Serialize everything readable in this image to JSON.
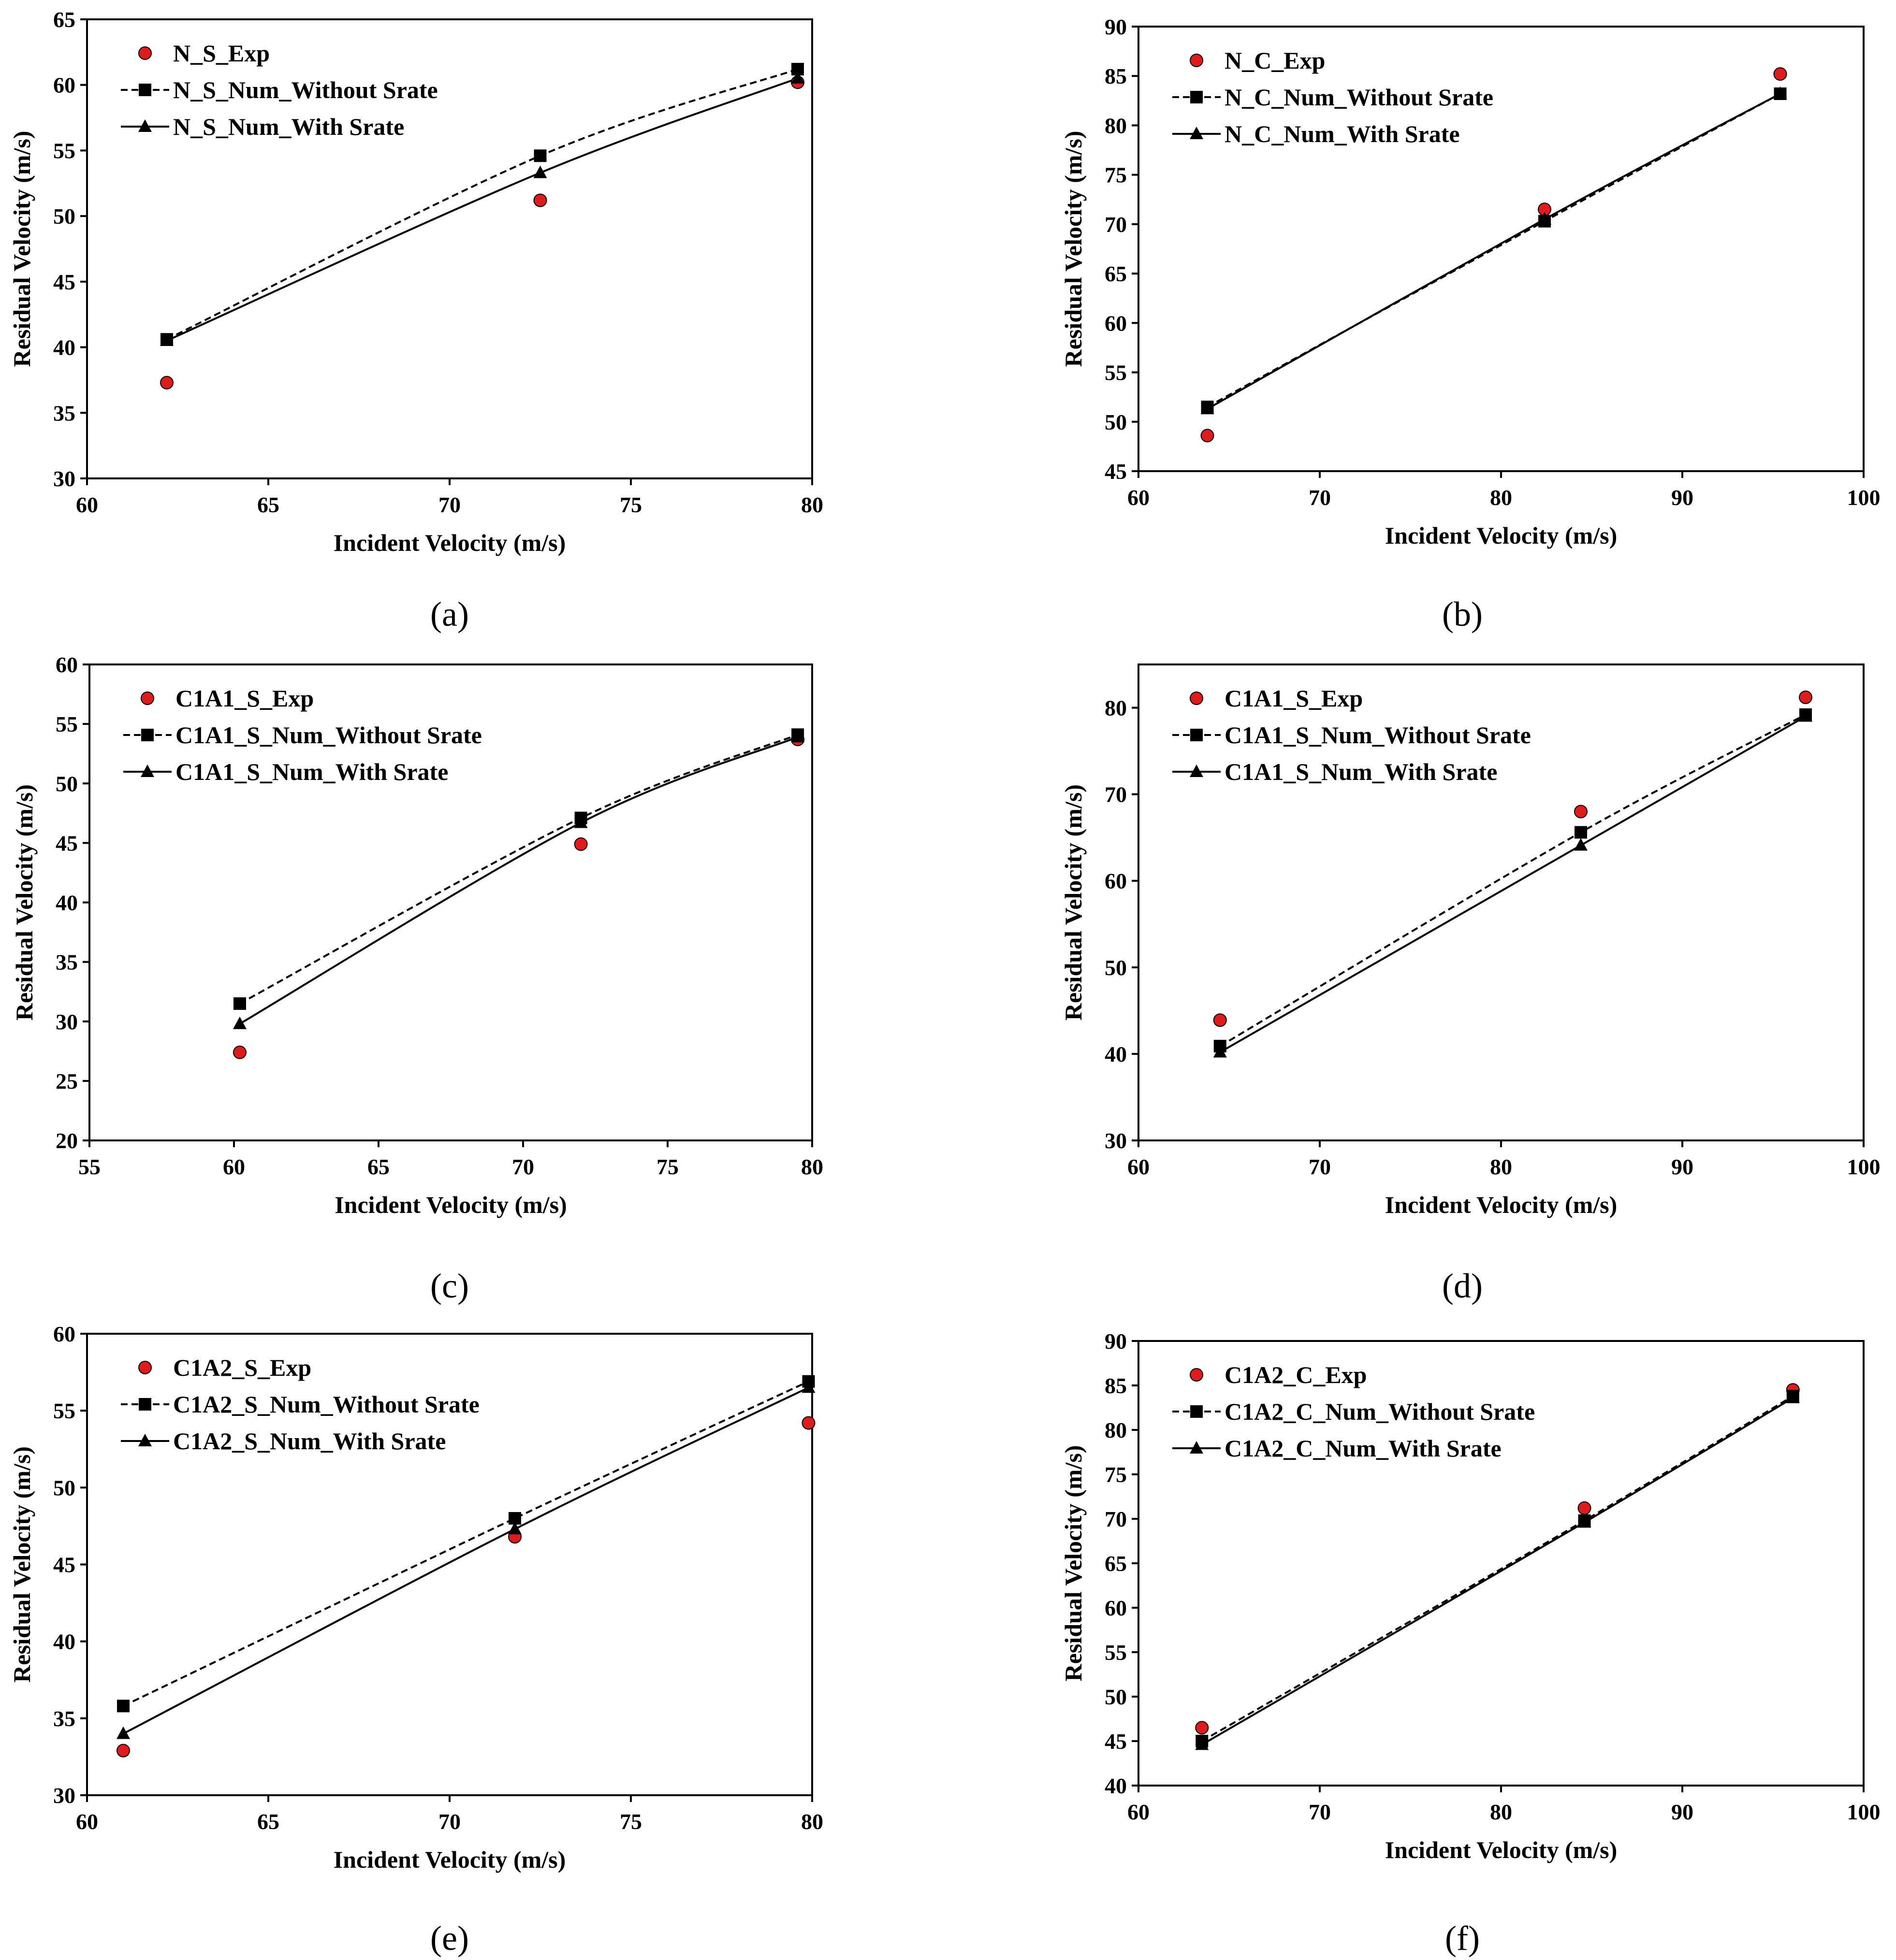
{
  "colors": {
    "exp_marker": "#e01b1b",
    "num_marker": "#000000",
    "axis": "#000000"
  },
  "chart_data": [
    {
      "type": "line",
      "caption": "(a)",
      "xlabel": "Incident Velocity (m/s)",
      "ylabel": "Residual Velocity (m/s)",
      "xlim": [
        60,
        80
      ],
      "ylim": [
        30,
        65
      ],
      "xticks": [
        60,
        65,
        70,
        75,
        80
      ],
      "yticks": [
        30,
        35,
        40,
        45,
        50,
        55,
        60,
        65
      ],
      "series": [
        {
          "name": "N_S_Exp",
          "kind": "exp",
          "x": [
            62.2,
            72.5,
            79.6
          ],
          "y": [
            37.3,
            51.2,
            60.2
          ]
        },
        {
          "name": "N_S_Num_Without Srate",
          "kind": "without",
          "x": [
            62.2,
            72.5,
            79.6
          ],
          "y": [
            40.6,
            54.6,
            61.2
          ]
        },
        {
          "name": "N_S_Num_With Srate",
          "kind": "with",
          "x": [
            62.2,
            72.5,
            79.6
          ],
          "y": [
            40.5,
            53.3,
            60.5
          ]
        }
      ]
    },
    {
      "type": "line",
      "caption": "(b)",
      "xlabel": "Incident Velocity (m/s)",
      "ylabel": "Residual Velocity (m/s)",
      "xlim": [
        60,
        100
      ],
      "ylim": [
        45,
        90
      ],
      "xticks": [
        60,
        70,
        80,
        90,
        100
      ],
      "yticks": [
        45,
        50,
        55,
        60,
        65,
        70,
        75,
        80,
        85,
        90
      ],
      "series": [
        {
          "name": "N_C_Exp",
          "kind": "exp",
          "x": [
            63.8,
            82.4,
            95.4
          ],
          "y": [
            48.6,
            71.5,
            85.2
          ]
        },
        {
          "name": "N_C_Num_Without Srate",
          "kind": "without",
          "x": [
            63.8,
            82.4,
            95.4
          ],
          "y": [
            51.5,
            70.3,
            83.2
          ]
        },
        {
          "name": "N_C_Num_With Srate",
          "kind": "with",
          "x": [
            63.8,
            82.4,
            95.4
          ],
          "y": [
            51.3,
            70.5,
            83.2
          ]
        }
      ]
    },
    {
      "type": "line",
      "caption": "(c)",
      "xlabel": "Incident Velocity (m/s)",
      "ylabel": "Residual Velocity (m/s)",
      "xlim": [
        55,
        80
      ],
      "ylim": [
        20,
        60
      ],
      "xticks": [
        55,
        60,
        65,
        70,
        75,
        80
      ],
      "yticks": [
        20,
        25,
        30,
        35,
        40,
        45,
        50,
        55,
        60
      ],
      "series": [
        {
          "name": "C1A1_S_Exp",
          "kind": "exp",
          "x": [
            60.2,
            72.0,
            79.5
          ],
          "y": [
            27.4,
            44.9,
            53.7
          ]
        },
        {
          "name": "C1A1_S_Num_Without Srate",
          "kind": "without",
          "x": [
            60.2,
            72.0,
            79.5
          ],
          "y": [
            31.5,
            47.1,
            54.1
          ]
        },
        {
          "name": "C1A1_S_Num_With Srate",
          "kind": "with",
          "x": [
            60.2,
            72.0,
            79.5
          ],
          "y": [
            29.8,
            46.7,
            53.9
          ]
        }
      ]
    },
    {
      "type": "line",
      "caption": "(d)",
      "xlabel": "Incident Velocity (m/s)",
      "ylabel": "Residual Velocity (m/s)",
      "xlim": [
        60,
        100
      ],
      "ylim": [
        30,
        85
      ],
      "xticks": [
        60,
        70,
        80,
        90,
        100
      ],
      "yticks": [
        30,
        40,
        50,
        60,
        70,
        80
      ],
      "series": [
        {
          "name": "C1A1_S_Exp",
          "kind": "exp",
          "x": [
            64.5,
            84.4,
            96.8
          ],
          "y": [
            43.9,
            68.0,
            81.2
          ]
        },
        {
          "name": "C1A1_S_Num_Without Srate",
          "kind": "without",
          "x": [
            64.5,
            84.4,
            96.8
          ],
          "y": [
            40.9,
            65.6,
            79.2
          ]
        },
        {
          "name": "C1A1_S_Num_With Srate",
          "kind": "with",
          "x": [
            64.5,
            84.4,
            96.8
          ],
          "y": [
            40.2,
            64.1,
            79.0
          ]
        }
      ]
    },
    {
      "type": "line",
      "caption": "(e)",
      "xlabel": "Incident Velocity (m/s)",
      "ylabel": "Residual Velocity (m/s)",
      "xlim": [
        60,
        80
      ],
      "ylim": [
        30,
        60
      ],
      "xticks": [
        60,
        65,
        70,
        75,
        80
      ],
      "yticks": [
        30,
        35,
        40,
        45,
        50,
        55,
        60
      ],
      "series": [
        {
          "name": "C1A2_S_Exp",
          "kind": "exp",
          "x": [
            61.0,
            71.8,
            79.9
          ],
          "y": [
            32.9,
            46.8,
            54.2
          ]
        },
        {
          "name": "C1A2_S_Num_Without Srate",
          "kind": "without",
          "x": [
            61.0,
            71.8,
            79.9
          ],
          "y": [
            35.8,
            48.0,
            56.9
          ]
        },
        {
          "name": "C1A2_S_Num_With Srate",
          "kind": "with",
          "x": [
            61.0,
            71.8,
            79.9
          ],
          "y": [
            34.0,
            47.3,
            56.5
          ]
        }
      ]
    },
    {
      "type": "line",
      "caption": "(f)",
      "xlabel": "Incident Velocity (m/s)",
      "ylabel": "Residual Velocity (m/s)",
      "xlim": [
        60,
        100
      ],
      "ylim": [
        40,
        90
      ],
      "xticks": [
        60,
        70,
        80,
        90,
        100
      ],
      "yticks": [
        40,
        45,
        50,
        55,
        60,
        65,
        70,
        75,
        80,
        85,
        90
      ],
      "series": [
        {
          "name": "C1A2_C_Exp",
          "kind": "exp",
          "x": [
            63.5,
            84.6,
            96.1
          ],
          "y": [
            46.5,
            71.2,
            84.5
          ]
        },
        {
          "name": "C1A2_C_Num_Without Srate",
          "kind": "without",
          "x": [
            63.5,
            84.6,
            96.1
          ],
          "y": [
            45.0,
            69.8,
            83.8
          ]
        },
        {
          "name": "C1A2_C_Num_With Srate",
          "kind": "with",
          "x": [
            63.5,
            84.6,
            96.1
          ],
          "y": [
            44.6,
            69.6,
            83.6
          ]
        }
      ]
    }
  ]
}
